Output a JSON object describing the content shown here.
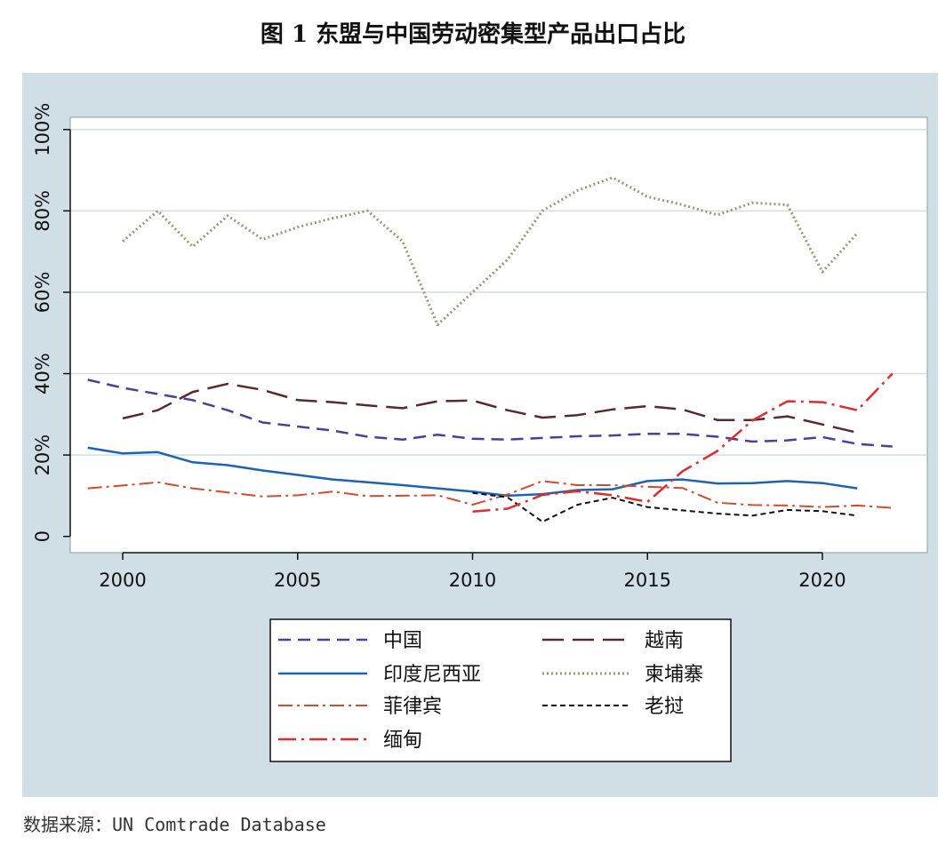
{
  "figure": {
    "title": "图 1  东盟与中国劳动密集型产品出口占比",
    "source": "数据来源：UN Comtrade Database"
  },
  "chart_data": {
    "type": "line",
    "title": "图 1  东盟与中国劳动密集型产品出口占比",
    "xlabel": "",
    "ylabel": "",
    "xlim": [
      1998.5,
      2023
    ],
    "ylim": [
      -4,
      103
    ],
    "x_ticks": [
      2000,
      2005,
      2010,
      2015,
      2020
    ],
    "x_tick_labels": [
      "2000",
      "2005",
      "2010",
      "2015",
      "2020"
    ],
    "y_ticks": [
      0,
      20,
      40,
      60,
      80,
      100
    ],
    "y_tick_labels": [
      "0",
      "20%",
      "40%",
      "60%",
      "80%",
      "100%"
    ],
    "grid": "horizontal",
    "legend_position": "bottom",
    "series": [
      {
        "name": "中国",
        "color": "#4f3c9c",
        "dash": "14 8",
        "width": 2.5,
        "x": [
          1999,
          2000,
          2001,
          2002,
          2003,
          2004,
          2005,
          2006,
          2007,
          2008,
          2009,
          2010,
          2011,
          2012,
          2013,
          2014,
          2015,
          2016,
          2017,
          2018,
          2019,
          2020,
          2021,
          2022
        ],
        "y": [
          38.5,
          36.5,
          35,
          33.5,
          31,
          28,
          27,
          26,
          24.5,
          23.8,
          25,
          24,
          23.8,
          24.2,
          24.6,
          24.8,
          25.2,
          25.2,
          24.5,
          23.3,
          23.6,
          24.4,
          22.7,
          22.1
        ]
      },
      {
        "name": "越南",
        "color": "#5a2a2a",
        "dash": "24 10",
        "width": 2.5,
        "x": [
          2000,
          2001,
          2002,
          2003,
          2004,
          2005,
          2006,
          2007,
          2008,
          2009,
          2010,
          2011,
          2012,
          2013,
          2014,
          2015,
          2016,
          2017,
          2018,
          2019,
          2020,
          2021
        ],
        "y": [
          29,
          31,
          35.5,
          37.5,
          36,
          33.5,
          33,
          32.2,
          31.5,
          33.2,
          33.4,
          31,
          29.2,
          29.8,
          31.2,
          32,
          31.2,
          28.6,
          28.6,
          29.5,
          27.5,
          25.5
        ]
      },
      {
        "name": "印度尼西亚",
        "color": "#1d63b4",
        "dash": "",
        "width": 2.5,
        "x": [
          1999,
          2000,
          2001,
          2002,
          2003,
          2004,
          2005,
          2006,
          2007,
          2008,
          2009,
          2010,
          2011,
          2012,
          2013,
          2014,
          2015,
          2016,
          2017,
          2018,
          2019,
          2020,
          2021
        ],
        "y": [
          21.8,
          20.4,
          20.7,
          18.2,
          17.5,
          16.2,
          15.1,
          14,
          13.3,
          12.6,
          11.8,
          11,
          10,
          10.4,
          11.4,
          11.6,
          13.6,
          14,
          13,
          13.1,
          13.6,
          13.1,
          11.8
        ]
      },
      {
        "name": "柬埔寨",
        "color": "#a49670",
        "dash": "2 3",
        "width": 3,
        "x": [
          2000,
          2001,
          2002,
          2003,
          2004,
          2005,
          2006,
          2007,
          2008,
          2009,
          2010,
          2011,
          2012,
          2013,
          2014,
          2015,
          2016,
          2017,
          2018,
          2019,
          2020,
          2021
        ],
        "y": [
          72.5,
          80,
          71.2,
          78.8,
          73,
          76,
          78.2,
          80,
          72.5,
          52,
          60,
          68,
          80,
          85,
          88.2,
          83.5,
          81.5,
          79,
          82,
          81.5,
          65,
          74.5
        ]
      },
      {
        "name": "菲律宾",
        "color": "#d34a2c",
        "dash": "16 5 3 5",
        "width": 2,
        "x": [
          1999,
          2000,
          2001,
          2002,
          2003,
          2004,
          2005,
          2006,
          2007,
          2008,
          2009,
          2010,
          2011,
          2012,
          2013,
          2014,
          2015,
          2016,
          2017,
          2018,
          2019,
          2020,
          2021,
          2022
        ],
        "y": [
          11.8,
          12.5,
          13.3,
          11.8,
          10.8,
          9.8,
          10.1,
          11,
          9.9,
          10,
          10.1,
          7.8,
          10.3,
          13.6,
          12.6,
          12.6,
          12.2,
          11.9,
          8.3,
          7.7,
          7.6,
          7.2,
          7.6,
          7
        ]
      },
      {
        "name": "老挝",
        "color": "#111111",
        "dash": "6 4",
        "width": 2,
        "x": [
          2010,
          2011,
          2012,
          2013,
          2014,
          2015,
          2016,
          2017,
          2018,
          2019,
          2020,
          2021
        ],
        "y": [
          10.7,
          9.6,
          3.6,
          7.8,
          9.5,
          7.2,
          6.4,
          5.6,
          5.1,
          6.5,
          6.2,
          5.1
        ]
      },
      {
        "name": "缅甸",
        "color": "#e42a2a",
        "dash": "20 6 3 6",
        "width": 2.5,
        "x": [
          2010,
          2011,
          2012,
          2013,
          2014,
          2015,
          2016,
          2017,
          2018,
          2019,
          2020,
          2021,
          2022
        ],
        "y": [
          6.1,
          6.8,
          10.2,
          11.1,
          10.1,
          8.5,
          16,
          21,
          28.5,
          33.2,
          33,
          31,
          40
        ]
      }
    ]
  }
}
